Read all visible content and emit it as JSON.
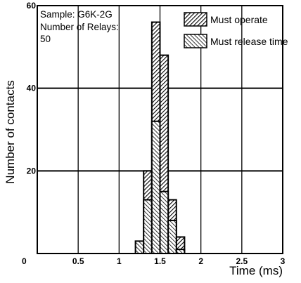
{
  "chart_data": {
    "type": "bar",
    "title": "",
    "annotation_lines": [
      "Sample: G6K-2G",
      "Number of Relays:",
      "50"
    ],
    "xlabel": "Time (ms)",
    "ylabel": "Number of contacts",
    "xlim": [
      0,
      3
    ],
    "ylim": [
      0,
      60
    ],
    "x_ticks": [
      "0",
      "0.5",
      "1",
      "1.5",
      "2",
      "2.5",
      "3"
    ],
    "y_ticks": [
      "20",
      "40",
      "60"
    ],
    "grid": true,
    "legend_position": "top-right",
    "bin_width": 0.1,
    "series": [
      {
        "name": "Must operate",
        "pattern": "forward-hatch",
        "bins": [
          {
            "x0": 1.3,
            "x1": 1.4,
            "value": 20
          },
          {
            "x0": 1.4,
            "x1": 1.5,
            "value": 56
          },
          {
            "x0": 1.5,
            "x1": 1.6,
            "value": 48
          },
          {
            "x0": 1.6,
            "x1": 1.7,
            "value": 13
          },
          {
            "x0": 1.7,
            "x1": 1.8,
            "value": 4
          }
        ]
      },
      {
        "name": "Must release time",
        "pattern": "back-hatch",
        "bins": [
          {
            "x0": 1.2,
            "x1": 1.3,
            "value": 3
          },
          {
            "x0": 1.3,
            "x1": 1.4,
            "value": 13
          },
          {
            "x0": 1.4,
            "x1": 1.5,
            "value": 32
          },
          {
            "x0": 1.5,
            "x1": 1.6,
            "value": 15
          },
          {
            "x0": 1.6,
            "x1": 1.7,
            "value": 8
          },
          {
            "x0": 1.7,
            "x1": 1.8,
            "value": 1
          }
        ]
      }
    ]
  }
}
